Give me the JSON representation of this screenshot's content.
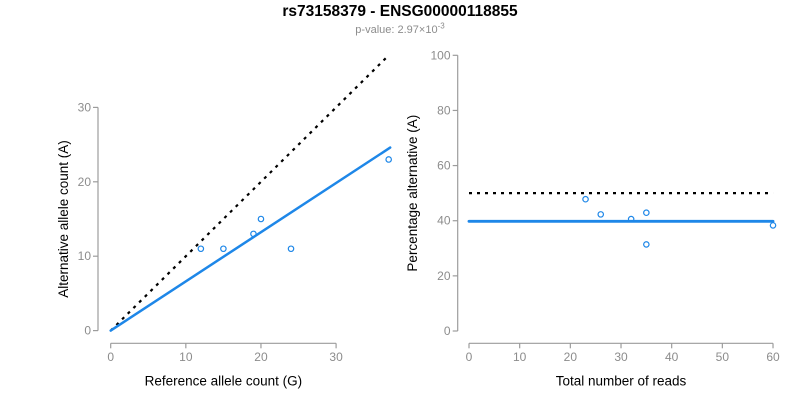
{
  "header": {
    "title": "rs73158379 - ENSG00000118855",
    "pvalue_prefix": "p-value: ",
    "pvalue_base": "2.97×10",
    "pvalue_exponent": "-3"
  },
  "colors": {
    "line_blue": "#1e87e8",
    "dotted_black": "#000000",
    "axis_gray": "#9c9c9c",
    "tick_label_gray": "#8c8c8c",
    "axis_title_black": "#000000",
    "subtitle_gray": "#8c8c8c",
    "background": "#ffffff"
  },
  "chart_data": [
    {
      "type": "scatter",
      "name": "allele-counts-plot",
      "xlabel": "Reference allele count (G)",
      "ylabel": "Alternative allele count (A)",
      "xlim": [
        0,
        37.2
      ],
      "ylim": [
        0,
        37.2
      ],
      "xticks": [
        0,
        10,
        20,
        30
      ],
      "yticks": [
        0,
        10,
        20,
        30
      ],
      "grid": false,
      "legend": null,
      "points": [
        {
          "x": 12,
          "y": 11
        },
        {
          "x": 15,
          "y": 11
        },
        {
          "x": 19,
          "y": 13
        },
        {
          "x": 20,
          "y": 15
        },
        {
          "x": 24,
          "y": 11
        },
        {
          "x": 37,
          "y": 23
        }
      ],
      "lines": [
        {
          "name": "identity-line",
          "style": "dotted",
          "color": "#000000",
          "x1": 0,
          "y1": 0,
          "x2": 37,
          "y2": 37
        },
        {
          "name": "fitted-ratio-line",
          "style": "solid",
          "color": "#1e87e8",
          "x1": 0,
          "y1": 0,
          "x2": 37.2,
          "y2": 24.6
        }
      ]
    },
    {
      "type": "scatter",
      "name": "percentage-alternative-plot",
      "xlabel": "Total number of reads",
      "ylabel": "Percentage alternative (A)",
      "xlim": [
        0,
        60
      ],
      "ylim": [
        0,
        100
      ],
      "xticks": [
        0,
        10,
        20,
        30,
        40,
        50,
        60
      ],
      "yticks": [
        0,
        20,
        40,
        60,
        80,
        100
      ],
      "grid": false,
      "legend": null,
      "points": [
        {
          "x": 23,
          "y": 47.8
        },
        {
          "x": 26,
          "y": 42.3
        },
        {
          "x": 32,
          "y": 40.6
        },
        {
          "x": 35,
          "y": 42.9
        },
        {
          "x": 35,
          "y": 31.4
        },
        {
          "x": 60,
          "y": 38.3
        }
      ],
      "lines": [
        {
          "name": "expected-50-percent-line",
          "style": "dotted",
          "color": "#000000",
          "x1": 0,
          "y1": 50,
          "x2": 60,
          "y2": 50
        },
        {
          "name": "observed-percent-line",
          "style": "solid",
          "color": "#1e87e8",
          "x1": 0,
          "y1": 39.8,
          "x2": 60,
          "y2": 39.8
        }
      ]
    }
  ]
}
